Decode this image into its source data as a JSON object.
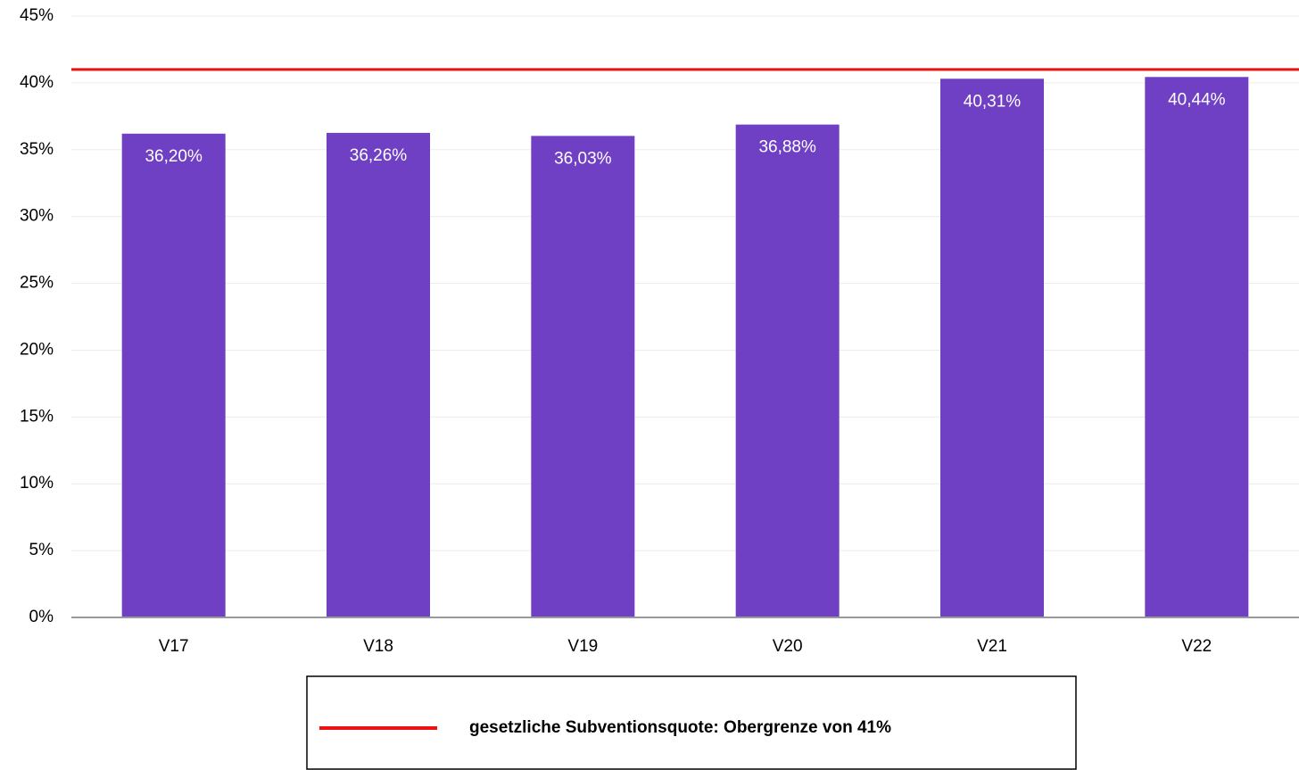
{
  "chart_data": {
    "type": "bar",
    "categories": [
      "V17",
      "V18",
      "V19",
      "V20",
      "V21",
      "V22"
    ],
    "values": [
      36.2,
      36.26,
      36.03,
      36.88,
      40.31,
      40.44
    ],
    "value_labels": [
      "36,20%",
      "36,26%",
      "36,03%",
      "36,88%",
      "40,31%",
      "40,44%"
    ],
    "color": "#7040c4",
    "ylim": [
      0,
      45
    ],
    "yticks": [
      {
        "value": 0,
        "label": "0%"
      },
      {
        "value": 5,
        "label": "5%"
      },
      {
        "value": 10,
        "label": "10%"
      },
      {
        "value": 15,
        "label": "15%"
      },
      {
        "value": 20,
        "label": "20%"
      },
      {
        "value": 25,
        "label": "25%"
      },
      {
        "value": 30,
        "label": "30%"
      },
      {
        "value": 35,
        "label": "35%"
      },
      {
        "value": 40,
        "label": "40%"
      },
      {
        "value": 45,
        "label": "45%"
      }
    ],
    "grid": true,
    "reference_line": {
      "value": 41,
      "name": "gesetzliche Subventionsquote: Obergrenze von 41%",
      "color": "#ee1111"
    },
    "legend": "bottom"
  }
}
